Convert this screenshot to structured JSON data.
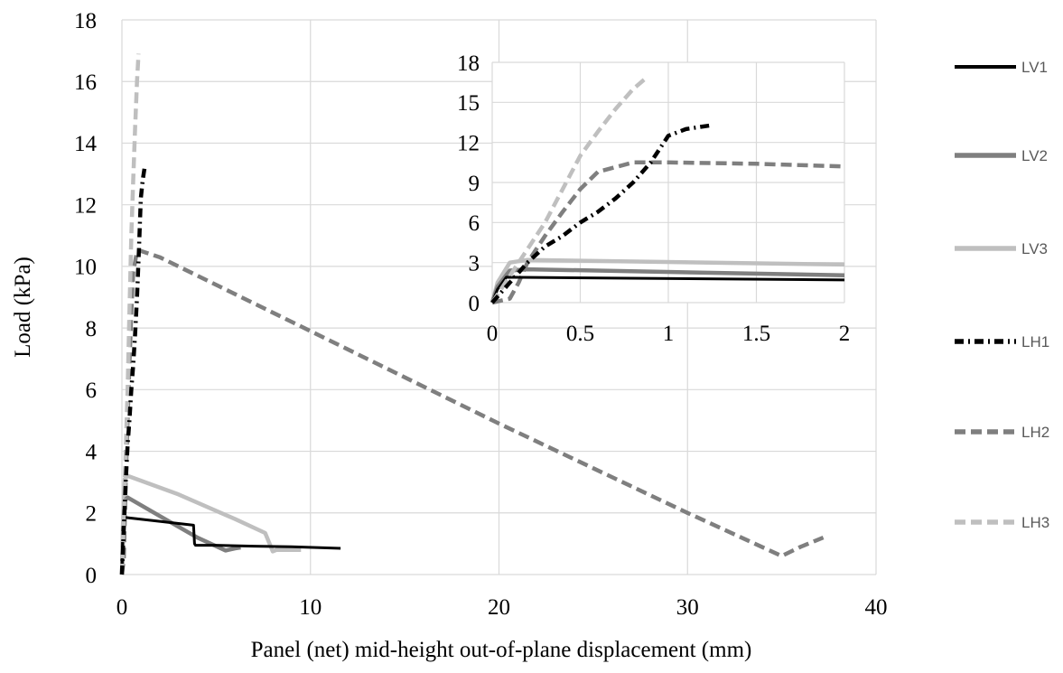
{
  "chart_data": [
    {
      "type": "line",
      "role": "main",
      "xlabel": "Panel (net) mid-height out-of-plane displacement (mm)",
      "ylabel": "Load (kPa)",
      "xlim": [
        0,
        40
      ],
      "ylim": [
        0,
        18
      ],
      "x_ticks": [
        0,
        10,
        20,
        30,
        40
      ],
      "y_ticks": [
        0,
        2,
        4,
        6,
        8,
        10,
        12,
        14,
        16,
        18
      ],
      "grid": true,
      "legend_position": "right",
      "series": [
        {
          "name": "LV1",
          "color": "#000000",
          "style": "solid",
          "x": [
            0,
            0.05,
            0.12,
            0.2,
            3.8,
            3.85,
            3.9,
            5.0,
            7.0,
            9.0,
            10.5,
            11.6
          ],
          "y": [
            0,
            1.5,
            1.85,
            1.85,
            1.6,
            1.0,
            0.95,
            0.95,
            0.92,
            0.9,
            0.87,
            0.85
          ]
        },
        {
          "name": "LV2",
          "color": "#7f7f7f",
          "style": "solid",
          "x": [
            0,
            0.05,
            0.15,
            0.3,
            2.0,
            4.0,
            5.5,
            6.0,
            6.3
          ],
          "y": [
            0,
            1.0,
            2.4,
            2.5,
            1.9,
            1.2,
            0.78,
            0.85,
            0.88
          ]
        },
        {
          "name": "LV3",
          "color": "#bfbfbf",
          "style": "solid",
          "x": [
            0,
            0.05,
            0.15,
            0.3,
            3.0,
            6.0,
            7.6,
            8.0,
            8.2,
            9.5
          ],
          "y": [
            0,
            1.5,
            3.1,
            3.2,
            2.6,
            1.8,
            1.35,
            0.75,
            0.8,
            0.8
          ]
        },
        {
          "name": "LH1",
          "color": "#000000",
          "style": "dashdot",
          "x": [
            0,
            0.1,
            0.2,
            0.3,
            0.4,
            0.5,
            0.6,
            0.7,
            0.8,
            0.9,
            1.0,
            1.1,
            1.2,
            1.25
          ],
          "y": [
            0,
            1.5,
            3.0,
            4.2,
            5.0,
            6.0,
            6.8,
            7.8,
            9.0,
            10.5,
            12.2,
            12.8,
            13.2,
            13.3
          ]
        },
        {
          "name": "LH2",
          "color": "#7f7f7f",
          "style": "dashed",
          "x": [
            0,
            0.1,
            0.2,
            0.3,
            0.4,
            0.5,
            0.6,
            0.8,
            1.0,
            2.0,
            10.0,
            20.0,
            30.0,
            35.0,
            36.0,
            37.2
          ],
          "y": [
            0,
            0.5,
            3.0,
            5.0,
            6.8,
            8.5,
            9.8,
            10.5,
            10.5,
            10.3,
            7.9,
            4.9,
            2.0,
            0.6,
            0.9,
            1.2
          ]
        },
        {
          "name": "LH3",
          "color": "#bfbfbf",
          "style": "dashed",
          "x": [
            0,
            0.1,
            0.2,
            0.3,
            0.4,
            0.5,
            0.6,
            0.7,
            0.8,
            0.88
          ],
          "y": [
            0,
            2.0,
            4.0,
            6.0,
            8.5,
            11.0,
            12.8,
            14.5,
            16.0,
            16.9
          ]
        }
      ]
    },
    {
      "type": "line",
      "role": "inset",
      "xlim": [
        0,
        2
      ],
      "ylim": [
        0,
        18
      ],
      "x_ticks": [
        0,
        0.5,
        1,
        1.5,
        2
      ],
      "y_ticks": [
        0,
        3,
        6,
        9,
        12,
        15,
        18
      ],
      "grid": true,
      "series": [
        {
          "name": "LV1",
          "color": "#000000",
          "style": "solid",
          "x": [
            0,
            0.03,
            0.08,
            2.0
          ],
          "y": [
            0,
            1.0,
            1.9,
            1.7
          ]
        },
        {
          "name": "LV2",
          "color": "#7f7f7f",
          "style": "solid",
          "x": [
            0,
            0.03,
            0.1,
            0.2,
            2.0
          ],
          "y": [
            0,
            1.2,
            2.4,
            2.5,
            2.05
          ]
        },
        {
          "name": "LV3",
          "color": "#bfbfbf",
          "style": "solid",
          "x": [
            0,
            0.03,
            0.1,
            0.2,
            2.0
          ],
          "y": [
            0,
            1.5,
            3.0,
            3.2,
            2.85
          ]
        },
        {
          "name": "LH1",
          "color": "#000000",
          "style": "dashdot",
          "x": [
            0,
            0.1,
            0.2,
            0.3,
            0.4,
            0.5,
            0.6,
            0.7,
            0.8,
            0.9,
            1.0,
            1.1,
            1.25
          ],
          "y": [
            0,
            1.5,
            3.0,
            4.2,
            5.0,
            6.0,
            6.8,
            7.8,
            9.0,
            10.5,
            12.5,
            13.0,
            13.3
          ]
        },
        {
          "name": "LH2",
          "color": "#7f7f7f",
          "style": "dashed",
          "x": [
            0,
            0.1,
            0.15,
            0.2,
            0.3,
            0.4,
            0.5,
            0.6,
            0.8,
            1.0,
            1.5,
            2.0
          ],
          "y": [
            0,
            0.3,
            1.5,
            3.0,
            5.0,
            6.8,
            8.5,
            9.8,
            10.5,
            10.5,
            10.4,
            10.2
          ]
        },
        {
          "name": "LH3",
          "color": "#bfbfbf",
          "style": "dashed",
          "x": [
            0,
            0.1,
            0.2,
            0.3,
            0.4,
            0.5,
            0.6,
            0.7,
            0.8,
            0.88
          ],
          "y": [
            0,
            2.0,
            4.0,
            6.0,
            8.5,
            11.0,
            12.8,
            14.5,
            16.0,
            16.9
          ]
        }
      ]
    }
  ]
}
